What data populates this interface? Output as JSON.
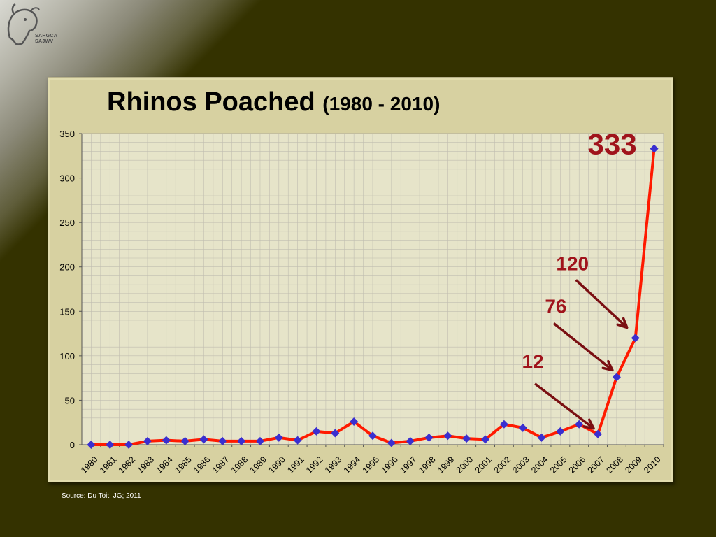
{
  "logo": {
    "line1": "SAHGCA",
    "line2": "SAJWV",
    "icon": "rhino-logo-icon"
  },
  "chart_data": {
    "type": "line",
    "title": "Rhinos Poached",
    "title_range": "(1980 - 2010)",
    "xlabel": "",
    "ylabel": "",
    "ylim": [
      0,
      350
    ],
    "yticks": [
      0,
      50,
      100,
      150,
      200,
      250,
      300,
      350
    ],
    "grid": true,
    "categories": [
      "1980",
      "1981",
      "1982",
      "1983",
      "1984",
      "1985",
      "1986",
      "1987",
      "1988",
      "1989",
      "1990",
      "1991",
      "1992",
      "1993",
      "1994",
      "1995",
      "1996",
      "1997",
      "1998",
      "1999",
      "2000",
      "2001",
      "2002",
      "2003",
      "2004",
      "2005",
      "2006",
      "2007",
      "2008",
      "2009",
      "2010"
    ],
    "values": [
      0,
      0,
      0,
      4,
      5,
      4,
      6,
      4,
      4,
      4,
      8,
      5,
      15,
      13,
      26,
      10,
      2,
      4,
      8,
      10,
      7,
      6,
      23,
      19,
      8,
      15,
      23,
      12,
      76,
      120,
      333
    ],
    "annotations": [
      {
        "text": "333",
        "year": "2010"
      },
      {
        "text": "120",
        "year": "2009",
        "arrow": true
      },
      {
        "text": "76",
        "year": "2008",
        "arrow": true
      },
      {
        "text": "12",
        "year": "2007",
        "arrow": true
      }
    ],
    "colors": {
      "line": "#ff1a00",
      "marker": "#3a2fd0",
      "annotation": "#a0131b",
      "arrow": "#7a0f12",
      "plot_bg": "#e6e4c9",
      "grid": "#c0bdb0"
    }
  },
  "source": "Source: Du Toit, JG; 2011"
}
